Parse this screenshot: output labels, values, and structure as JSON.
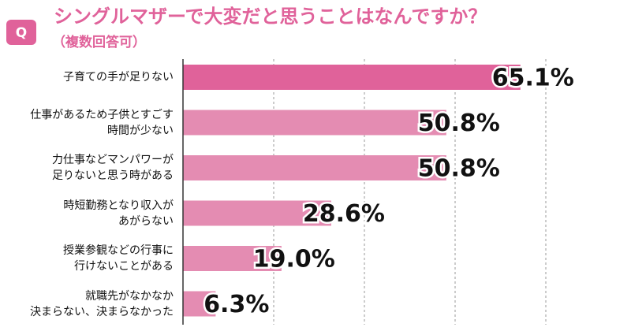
{
  "badge": "Q",
  "chart_data": {
    "type": "barh",
    "title": "シングルマザーで大変だと思うことはなんですか？",
    "subtitle": "（複数回答可）",
    "categories": [
      "子育ての手が足りない",
      "仕事があるため子供とすごす\n時間が少ない",
      "力仕事などマンパワーが\n足りないと思う時がある",
      "時短勤務となり収入が\nあがらない",
      "授業参観などの行事に\n行けないことがある",
      "就職先がなかなか\n決まらない、決まらなかった"
    ],
    "values": [
      65.1,
      50.8,
      50.8,
      28.6,
      19.0,
      6.3
    ],
    "value_labels": [
      "65.1%",
      "50.8%",
      "50.8%",
      "28.6%",
      "19.0%",
      "6.3%"
    ],
    "colors": [
      "#e0629a",
      "#e48cb2",
      "#e48cb2",
      "#e48cb2",
      "#e48cb2",
      "#e48cb2"
    ],
    "xlim": [
      0,
      70
    ],
    "xticks": [
      17.5,
      35,
      52.5,
      70
    ],
    "grid": true
  }
}
